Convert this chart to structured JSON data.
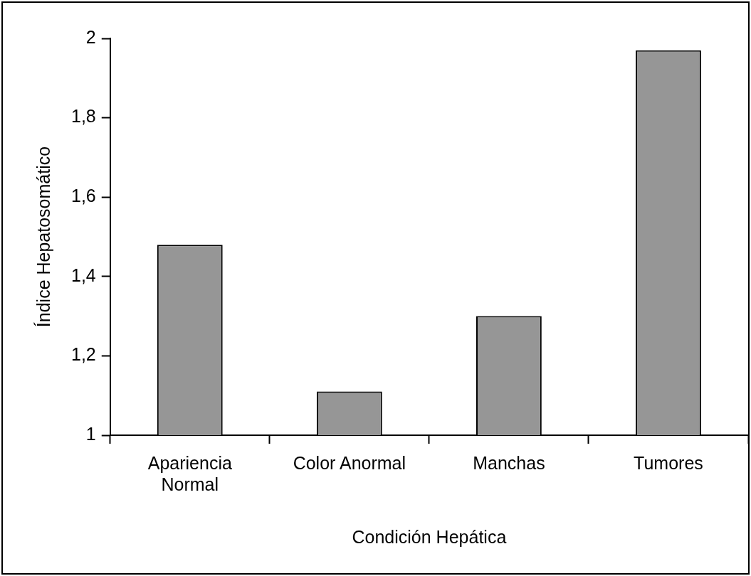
{
  "chart_data": {
    "type": "bar",
    "xlabel": "Condición Hepática",
    "ylabel": "Índice Hepatosomático",
    "categories": [
      "Apariencia Normal",
      "Color Anormal",
      "Manchas",
      "Tumores"
    ],
    "values": [
      1.48,
      1.11,
      1.3,
      1.97
    ],
    "color": "#969696",
    "ylim": [
      1,
      2
    ],
    "yticks": [
      1,
      {
        "value": 1.2,
        "label": "1,2"
      },
      {
        "value": 1.4,
        "label": "1,4"
      },
      {
        "value": 1.6,
        "label": "1,6"
      },
      {
        "value": 1.8,
        "label": "1,8"
      },
      2
    ],
    "grid": false,
    "legend": false
  }
}
